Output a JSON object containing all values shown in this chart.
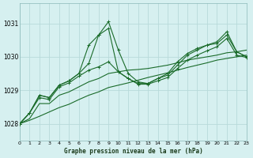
{
  "title": "Graphe pression niveau de la mer (hPa)",
  "bg_color": "#d6f0f0",
  "grid_color": "#b8dada",
  "line_color": "#1a6b2a",
  "x_min": 0,
  "x_max": 23,
  "y_min": 1027.5,
  "y_max": 1031.6,
  "yticks": [
    1028,
    1029,
    1030,
    1031
  ],
  "series": [
    {
      "data": [
        1028.0,
        1028.32,
        1028.85,
        1028.78,
        1029.15,
        1029.28,
        1029.5,
        1030.35,
        1030.65,
        1031.05,
        1030.2,
        1029.5,
        1029.25,
        1029.2,
        1029.35,
        1029.5,
        1029.85,
        1030.1,
        1030.25,
        1030.35,
        1030.45,
        1030.75,
        1030.15,
        1030.0
      ],
      "style": "-",
      "marker": "+",
      "lw": 0.8,
      "ms": 3.5
    },
    {
      "data": [
        1028.0,
        1028.32,
        1028.85,
        1028.78,
        1029.15,
        1029.28,
        1029.5,
        1029.8,
        1030.65,
        1030.85,
        1029.55,
        1029.35,
        1029.2,
        1029.2,
        1029.35,
        1029.45,
        1029.75,
        1030.05,
        1030.2,
        1030.35,
        1030.4,
        1030.65,
        1030.15,
        1030.0
      ],
      "style": "-",
      "marker": "+",
      "lw": 0.8,
      "ms": 3.5
    },
    {
      "data": [
        1028.0,
        1028.32,
        1028.78,
        1028.72,
        1029.1,
        1029.22,
        1029.42,
        1029.6,
        1029.7,
        1029.85,
        1029.55,
        1029.35,
        1029.18,
        1029.18,
        1029.28,
        1029.38,
        1029.65,
        1029.9,
        1030.05,
        1030.18,
        1030.3,
        1030.55,
        1030.05,
        1029.98
      ],
      "style": "-",
      "marker": "+",
      "lw": 0.8,
      "ms": 3.5
    },
    {
      "data": [
        1028.0,
        1028.15,
        1028.6,
        1028.6,
        1028.85,
        1028.95,
        1029.1,
        1029.25,
        1029.35,
        1029.5,
        1029.55,
        1029.6,
        1029.62,
        1029.65,
        1029.7,
        1029.75,
        1029.82,
        1029.9,
        1029.95,
        1030.0,
        1030.05,
        1030.12,
        1030.15,
        1030.2
      ],
      "style": "-",
      "marker": null,
      "lw": 0.8,
      "ms": 0
    },
    {
      "data": [
        1028.0,
        1028.1,
        1028.22,
        1028.35,
        1028.48,
        1028.58,
        1028.72,
        1028.85,
        1028.95,
        1029.08,
        1029.15,
        1029.22,
        1029.3,
        1029.38,
        1029.45,
        1029.52,
        1029.6,
        1029.68,
        1029.75,
        1029.82,
        1029.9,
        1029.95,
        1030.0,
        1030.05
      ],
      "style": "-",
      "marker": null,
      "lw": 0.8,
      "ms": 0
    }
  ]
}
